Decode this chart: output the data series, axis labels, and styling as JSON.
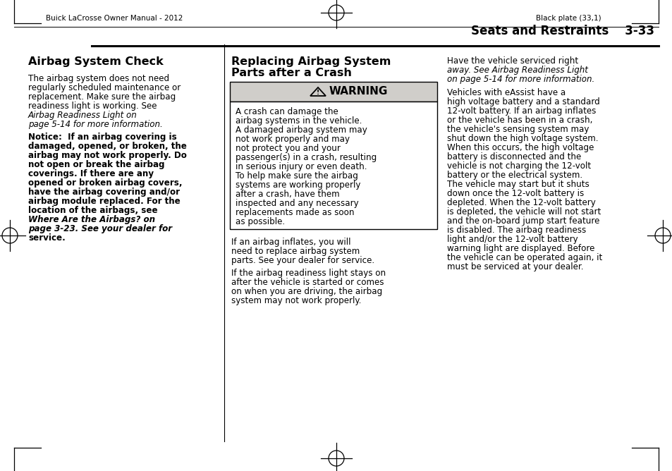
{
  "bg_color": "#ffffff",
  "header_left": "Buick LaCrosse Owner Manual - 2012",
  "header_right": "Black plate (33,1)",
  "section_title": "Seats and Restraints",
  "section_number": "3-33",
  "warning_bg": "#d0ceca",
  "border_color": "#000000",
  "text_color": "#000000",
  "col1_title": "Airbag System Check",
  "col1_p1": [
    "The airbag system does not need",
    "regularly scheduled maintenance or",
    "replacement. Make sure the airbag",
    "readiness light is working. See",
    "Airbag Readiness Light on",
    "page 5-14 for more information."
  ],
  "col1_p1_italic": [
    4,
    5
  ],
  "col1_notice": [
    "Notice:  If an airbag covering is",
    "damaged, opened, or broken, the",
    "airbag may not work properly. Do",
    "not open or break the airbag",
    "coverings. If there are any",
    "opened or broken airbag covers,",
    "have the airbag covering and/or",
    "airbag module replaced. For the",
    "location of the airbags, see",
    "Where Are the Airbags? on",
    "page 3-23. See your dealer for",
    "service."
  ],
  "col1_notice_italic": [
    9,
    10
  ],
  "col2_title1": "Replacing Airbag System",
  "col2_title2": "Parts after a Crash",
  "warning_text": [
    "A crash can damage the",
    "airbag systems in the vehicle.",
    "A damaged airbag system may",
    "not work properly and may",
    "not protect you and your",
    "passenger(s) in a crash, resulting",
    "in serious injury or even death.",
    "To help make sure the airbag",
    "systems are working properly",
    "after a crash, have them",
    "inspected and any necessary",
    "replacements made as soon",
    "as possible."
  ],
  "col2_after_warn": [
    "If an airbag inflates, you will",
    "need to replace airbag system",
    "parts. See your dealer for service."
  ],
  "col2_p3": [
    "If the airbag readiness light stays on",
    "after the vehicle is started or comes",
    "on when you are driving, the airbag",
    "system may not work properly."
  ],
  "col3_p1": [
    "Have the vehicle serviced right",
    "away. See Airbag Readiness Light",
    "on page 5-14 for more information."
  ],
  "col3_p1_italic": [
    1,
    2
  ],
  "col3_p2": [
    "Vehicles with eAssist have a",
    "high voltage battery and a standard",
    "12-volt battery. If an airbag inflates",
    "or the vehicle has been in a crash,",
    "the vehicle's sensing system may",
    "shut down the high voltage system.",
    "When this occurs, the high voltage",
    "battery is disconnected and the",
    "vehicle is not charging the 12-volt",
    "battery or the electrical system.",
    "The vehicle may start but it shuts",
    "down once the 12-volt battery is",
    "depleted. When the 12-volt battery",
    "is depleted, the vehicle will not start",
    "and the on-board jump start feature",
    "is disabled. The airbag readiness",
    "light and/or the 12-volt battery",
    "warning light are displayed. Before",
    "the vehicle can be operated again, it",
    "must be serviced at your dealer."
  ]
}
